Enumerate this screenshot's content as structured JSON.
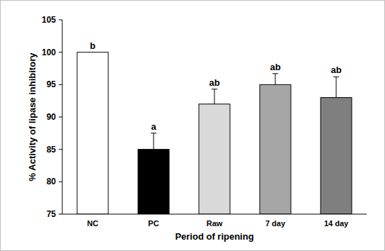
{
  "chart_data": {
    "type": "bar",
    "x_label": "Period of ripening",
    "y_label": "% Activity of lipase inhibitory",
    "categories": [
      "NC",
      "PC",
      "Raw",
      "7 day",
      "14 day"
    ],
    "values": [
      100,
      85,
      92,
      95,
      93
    ],
    "errors": [
      null,
      2.5,
      2.3,
      1.7,
      3.2
    ],
    "letters": [
      "b",
      "a",
      "ab",
      "ab",
      "ab"
    ],
    "colors": [
      "#ffffff",
      "#000000",
      "#d9d9d9",
      "#a6a6a6",
      "#7f7f7f"
    ],
    "ylim": [
      75,
      105
    ],
    "yticks": [
      75,
      80,
      85,
      90,
      95,
      100,
      105
    ],
    "grid": false
  }
}
